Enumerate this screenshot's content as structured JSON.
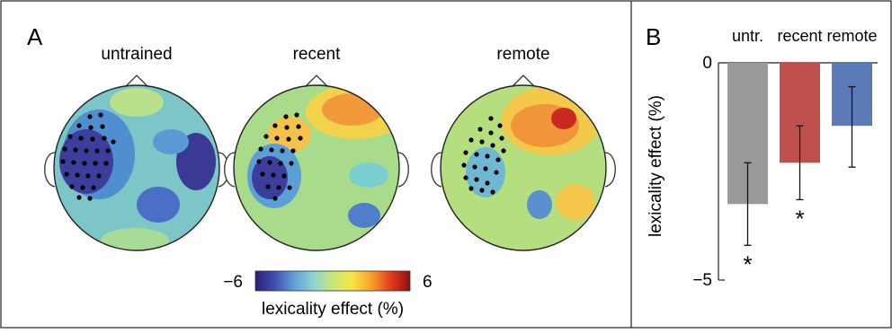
{
  "panel_a": {
    "label": "A",
    "maps": [
      {
        "title": "untrained",
        "color": "#2f6fb8"
      },
      {
        "title": "recent",
        "color": "#e8a33b"
      },
      {
        "title": "remote",
        "color": "#f3c63a"
      }
    ],
    "colorbar": {
      "min_label": "−6",
      "max_label": "6",
      "title": "lexicality effect (%)",
      "colors": [
        "#2b1d7a",
        "#3f4fb0",
        "#5fa0d8",
        "#8fd3d0",
        "#c7e67a",
        "#f7e640",
        "#f7a02c",
        "#e33a1e",
        "#8b1010"
      ]
    }
  },
  "panel_b": {
    "label": "B",
    "chart_data": {
      "type": "bar",
      "categories": [
        "untr.",
        "recent",
        "remote"
      ],
      "values": [
        -3.25,
        -2.3,
        -1.45
      ],
      "error_low": [
        -4.2,
        -3.15,
        -2.4
      ],
      "error_high": [
        -2.3,
        -1.45,
        -0.55
      ],
      "significant": [
        true,
        true,
        false
      ],
      "colors": [
        "#999999",
        "#c0504d",
        "#5b7bb8"
      ],
      "ylabel": "lexicality effect (%)",
      "ylim": [
        -5,
        0
      ],
      "yticks": [
        "0",
        "−5"
      ],
      "annotation": "*"
    }
  }
}
